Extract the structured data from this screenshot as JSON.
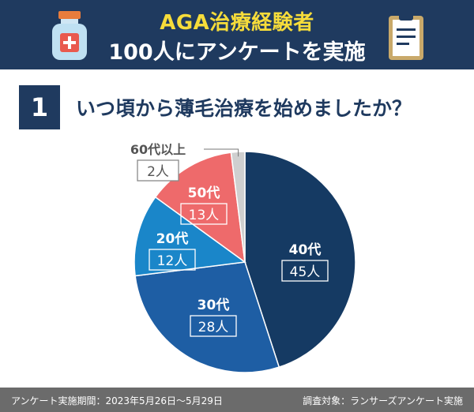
{
  "header": {
    "title": "AGA治療経験者",
    "subtitle": "100人にアンケートを実施",
    "left_icon": "medicine-bottle-icon",
    "right_icon": "clipboard-icon"
  },
  "question": {
    "number": "1",
    "text": "いつ頃から薄毛治療を始めましたか？"
  },
  "chart_data": {
    "type": "pie",
    "title": "",
    "unit": "人",
    "start_angle_deg": 0,
    "direction": "clockwise",
    "slices": [
      {
        "label": "40代",
        "value": 45,
        "value_label": "45人",
        "color": "#153a63"
      },
      {
        "label": "30代",
        "value": 28,
        "value_label": "28人",
        "color": "#1e5ea4"
      },
      {
        "label": "20代",
        "value": 12,
        "value_label": "12人",
        "color": "#1a86c9"
      },
      {
        "label": "50代",
        "value": 13,
        "value_label": "13人",
        "color": "#ee6a6b"
      },
      {
        "label": "60代以上",
        "value": 2,
        "value_label": "2人",
        "color": "#cfcfcf"
      }
    ]
  },
  "footer": {
    "period": "アンケート実施期間：2023年5月26日〜5月29日",
    "target": "調査対象：ランサーズアンケート実施"
  }
}
